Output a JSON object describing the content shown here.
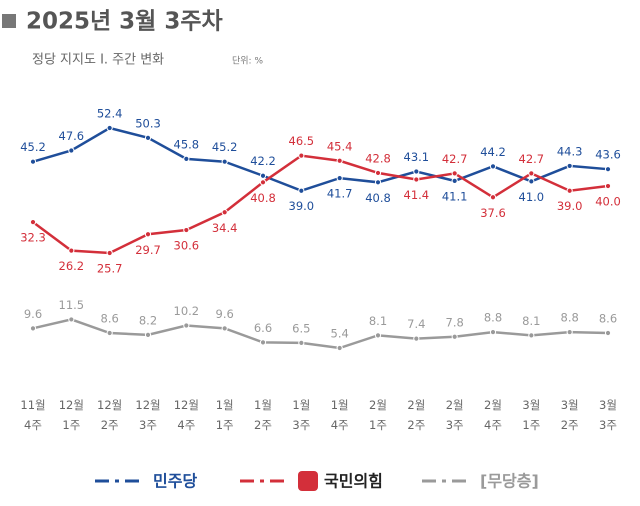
{
  "chart_data": {
    "type": "line",
    "title": "2025년 3월 3주차",
    "subtitle": "정당 지지도 Ⅰ. 주간 변화",
    "unit": "단위: %",
    "categories": [
      [
        "11월",
        "4주"
      ],
      [
        "12월",
        "1주"
      ],
      [
        "12월",
        "2주"
      ],
      [
        "12월",
        "3주"
      ],
      [
        "12월",
        "4주"
      ],
      [
        "1월",
        "1주"
      ],
      [
        "1월",
        "2주"
      ],
      [
        "1월",
        "3주"
      ],
      [
        "1월",
        "4주"
      ],
      [
        "2월",
        "1주"
      ],
      [
        "2월",
        "2주"
      ],
      [
        "2월",
        "3주"
      ],
      [
        "2월",
        "4주"
      ],
      [
        "3월",
        "1주"
      ],
      [
        "3월",
        "2주"
      ],
      [
        "3월",
        "3주"
      ]
    ],
    "series": [
      {
        "name": "민주당",
        "color": "#1f4e9a",
        "values": [
          45.2,
          47.6,
          52.4,
          50.3,
          45.8,
          45.2,
          42.2,
          39.0,
          41.7,
          40.8,
          43.1,
          41.1,
          44.2,
          41.0,
          44.3,
          43.6
        ],
        "value_labels": [
          "45.2",
          "47.6",
          "52.4",
          "50.3",
          "45.8",
          "45.2",
          "42.2",
          "39.0",
          "41.7",
          "40.8",
          "43.1",
          "41.1",
          "44.2",
          "41.0",
          "44.3",
          "43.6"
        ]
      },
      {
        "name": "국민의힘",
        "color": "#d32f3a",
        "values": [
          32.3,
          26.2,
          25.7,
          29.7,
          30.6,
          34.4,
          40.8,
          46.5,
          45.4,
          42.8,
          41.4,
          42.7,
          37.6,
          42.7,
          39.0,
          40.0
        ],
        "value_labels": [
          "32.3",
          "26.2",
          "25.7",
          "29.7",
          "30.6",
          "34.4",
          "40.8",
          "46.5",
          "45.4",
          "42.8",
          "41.4",
          "42.7",
          "37.6",
          "42.7",
          "39.0",
          "40.0"
        ]
      },
      {
        "name": "[무당층]",
        "color": "#9a9a9a",
        "values": [
          9.6,
          11.5,
          8.6,
          8.2,
          10.2,
          9.6,
          6.6,
          6.5,
          5.4,
          8.1,
          7.4,
          7.8,
          8.8,
          8.1,
          8.8,
          8.6
        ],
        "value_labels": [
          "9.6",
          "11.5",
          "8.6",
          "8.2",
          "10.2",
          "9.6",
          "6.6",
          "6.5",
          "5.4",
          "8.1",
          "7.4",
          "7.8",
          "8.8",
          "8.1",
          "8.8",
          "8.6"
        ]
      }
    ]
  }
}
